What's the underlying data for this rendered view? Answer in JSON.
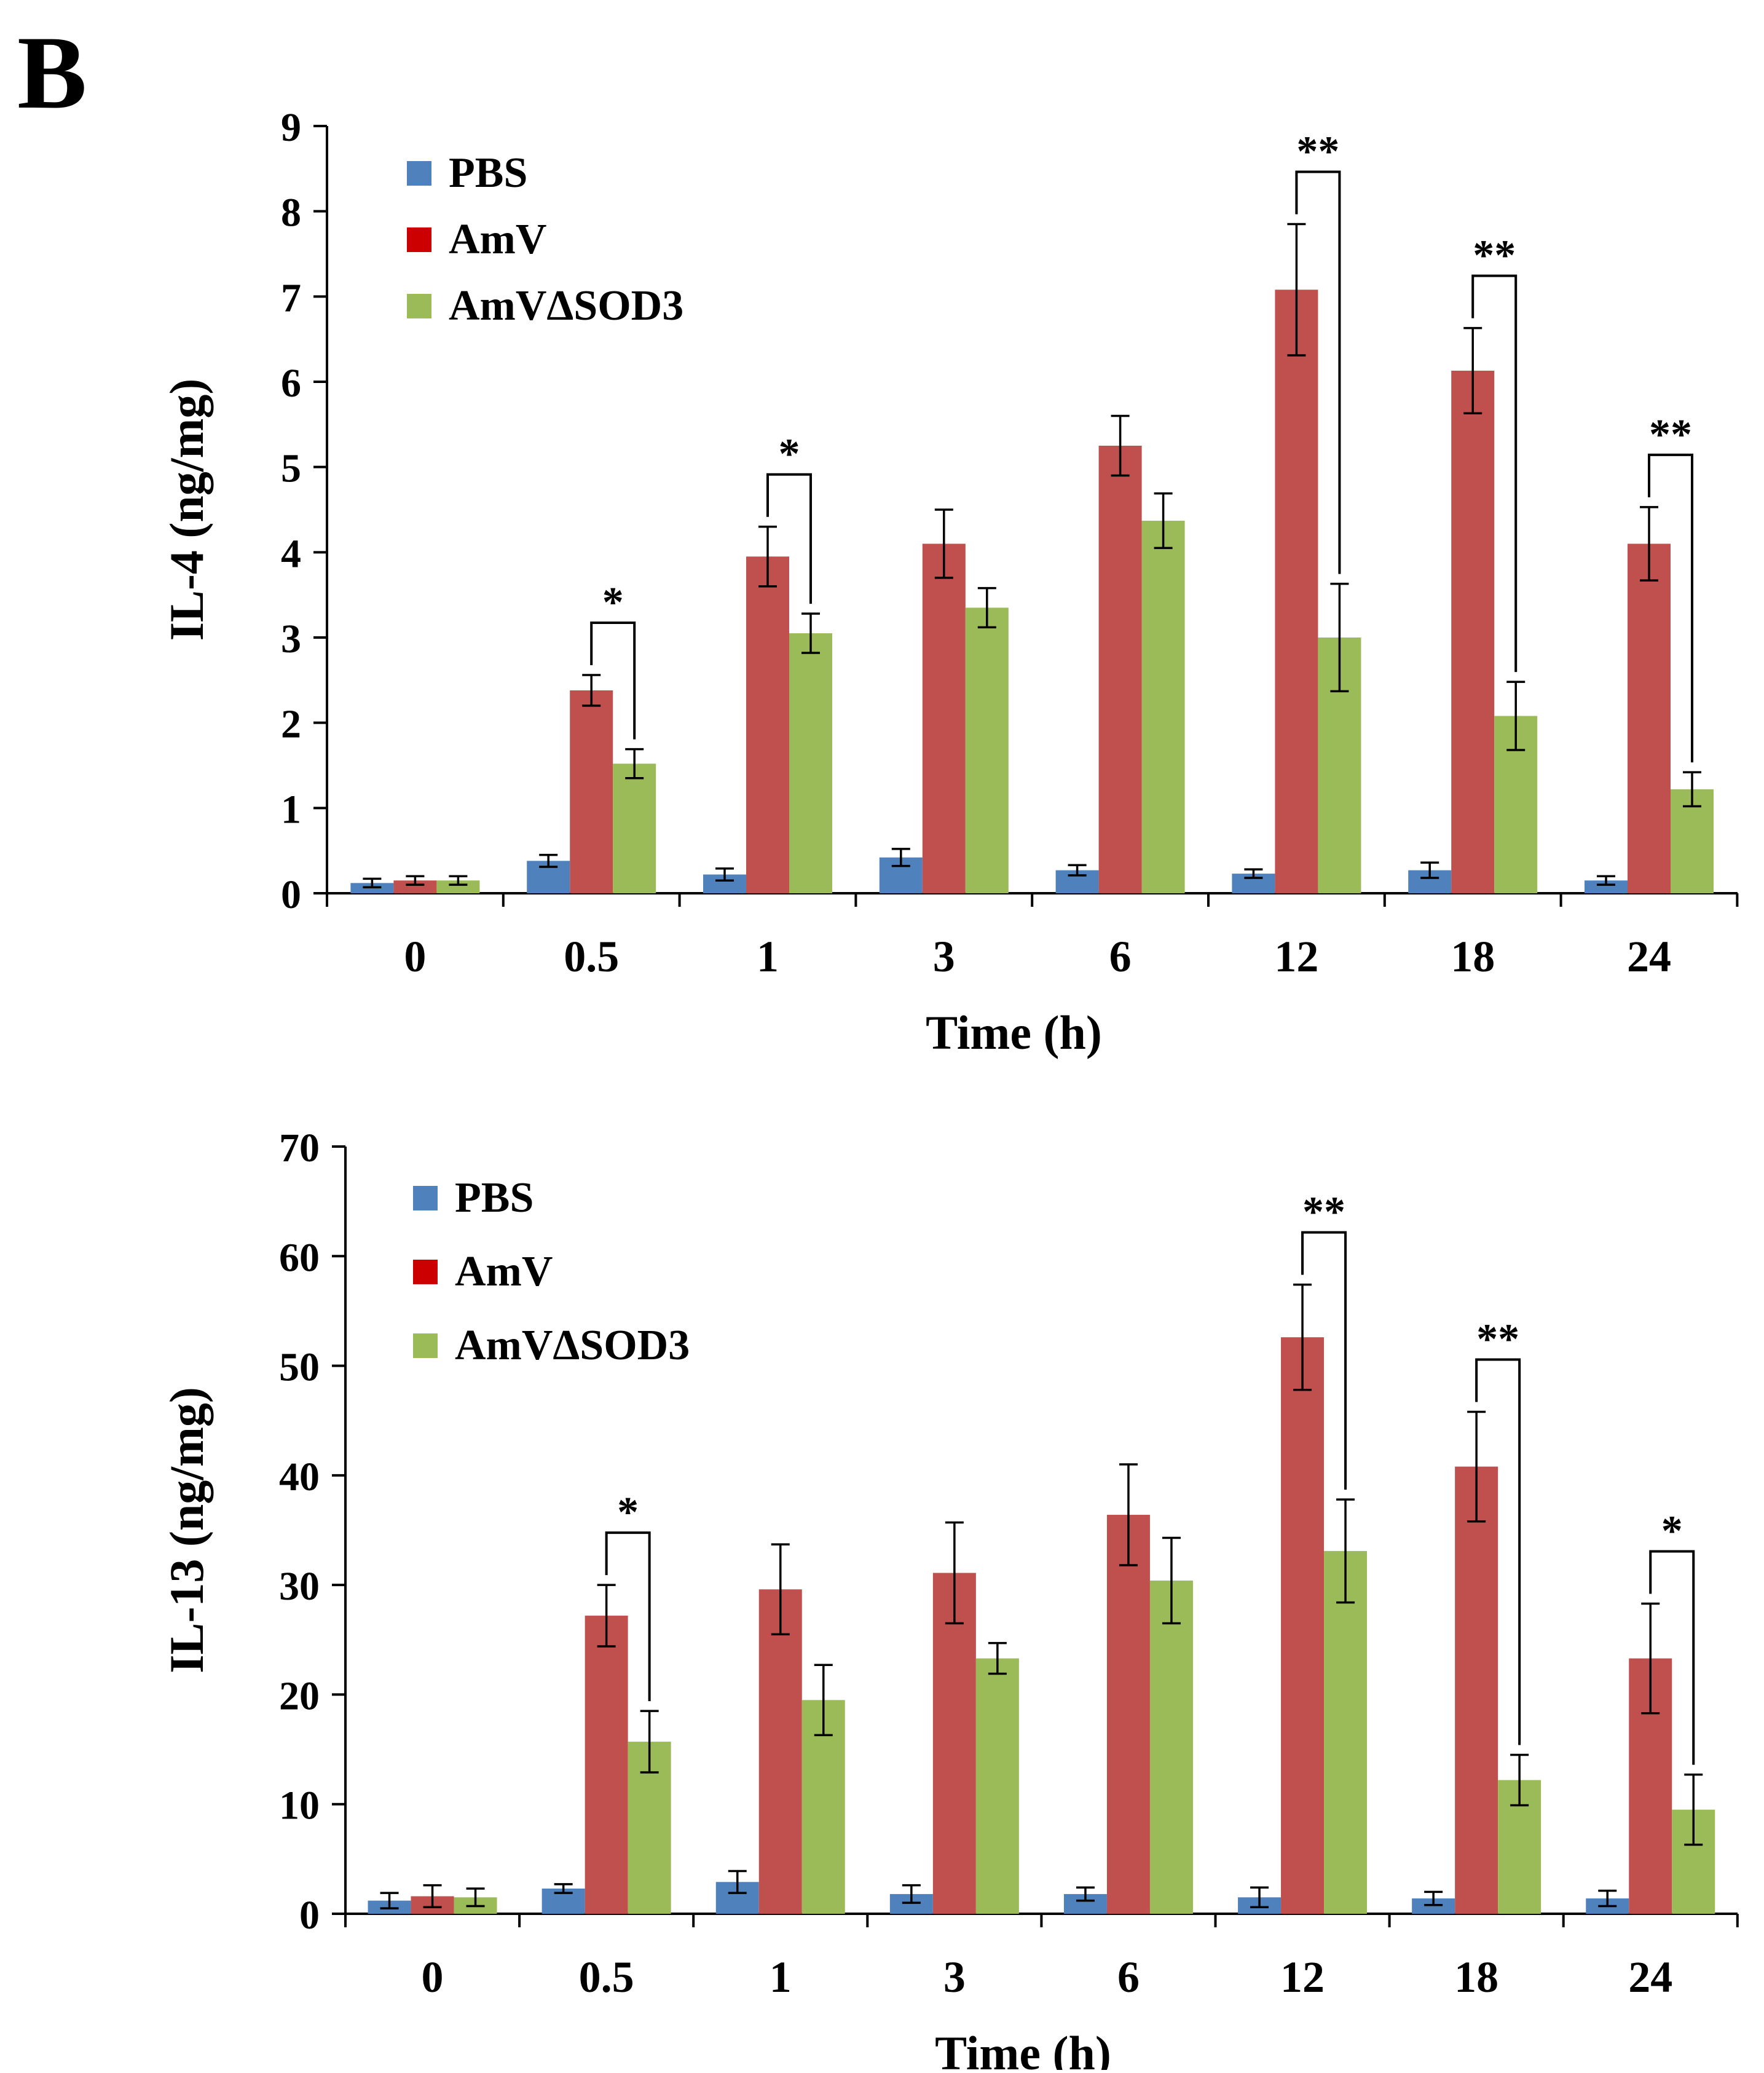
{
  "panel_label": "B",
  "colors": {
    "PBS": "#4F81BD",
    "AmV": "#C0504D",
    "AmVΔSOD3": "#9BBB59",
    "AmV_legend": "#CC0000"
  },
  "chart_data": [
    {
      "type": "bar",
      "title": "",
      "xlabel": "Time (h)",
      "ylabel": "IL-4 (ng/mg)",
      "ylim": [
        0,
        9
      ],
      "yticks": [
        0,
        1,
        2,
        3,
        4,
        5,
        6,
        7,
        8,
        9
      ],
      "categories": [
        "0",
        "0.5",
        "1",
        "3",
        "6",
        "12",
        "18",
        "24"
      ],
      "legend": [
        "PBS",
        "AmV",
        "AmVΔSOD3"
      ],
      "legend_position": "top-left",
      "series": [
        {
          "name": "PBS",
          "values": [
            0.12,
            0.38,
            0.22,
            0.42,
            0.27,
            0.23,
            0.27,
            0.15
          ],
          "errors": [
            0.05,
            0.07,
            0.07,
            0.1,
            0.06,
            0.05,
            0.09,
            0.05
          ]
        },
        {
          "name": "AmV",
          "values": [
            0.15,
            2.38,
            3.95,
            4.1,
            5.25,
            7.08,
            6.13,
            4.1
          ],
          "errors": [
            0.05,
            0.18,
            0.35,
            0.4,
            0.35,
            0.77,
            0.5,
            0.43
          ]
        },
        {
          "name": "AmVΔSOD3",
          "values": [
            0.15,
            1.52,
            3.05,
            3.35,
            4.37,
            3.0,
            2.08,
            1.22
          ],
          "errors": [
            0.05,
            0.17,
            0.23,
            0.23,
            0.32,
            0.63,
            0.4,
            0.2
          ]
        }
      ],
      "significance": [
        {
          "category": "0.5",
          "label": "*"
        },
        {
          "category": "1",
          "label": "*"
        },
        {
          "category": "12",
          "label": "**"
        },
        {
          "category": "18",
          "label": "**"
        },
        {
          "category": "24",
          "label": "**"
        }
      ]
    },
    {
      "type": "bar",
      "title": "",
      "xlabel": "Time (h)",
      "ylabel": "IL-13 (ng/mg)",
      "ylim": [
        0,
        70
      ],
      "yticks": [
        0,
        10,
        20,
        30,
        40,
        50,
        60,
        70
      ],
      "categories": [
        "0",
        "0.5",
        "1",
        "3",
        "6",
        "12",
        "18",
        "24"
      ],
      "legend": [
        "PBS",
        "AmV",
        "AmVΔSOD3"
      ],
      "legend_position": "top-left",
      "series": [
        {
          "name": "PBS",
          "values": [
            1.2,
            2.3,
            2.9,
            1.8,
            1.8,
            1.5,
            1.4,
            1.4
          ],
          "errors": [
            0.7,
            0.4,
            1.0,
            0.8,
            0.6,
            0.9,
            0.6,
            0.7
          ]
        },
        {
          "name": "AmV",
          "values": [
            1.6,
            27.2,
            29.6,
            31.1,
            36.4,
            52.6,
            40.8,
            23.3
          ],
          "errors": [
            1.0,
            2.8,
            4.1,
            4.6,
            4.6,
            4.8,
            5.0,
            5.0
          ]
        },
        {
          "name": "AmVΔSOD3",
          "values": [
            1.5,
            15.7,
            19.5,
            23.3,
            30.4,
            33.1,
            12.2,
            9.5
          ],
          "errors": [
            0.8,
            2.8,
            3.2,
            1.4,
            3.9,
            4.7,
            2.3,
            3.2
          ]
        }
      ],
      "significance": [
        {
          "category": "0.5",
          "label": "*"
        },
        {
          "category": "12",
          "label": "**"
        },
        {
          "category": "18",
          "label": "**"
        },
        {
          "category": "24",
          "label": "*"
        }
      ]
    }
  ]
}
